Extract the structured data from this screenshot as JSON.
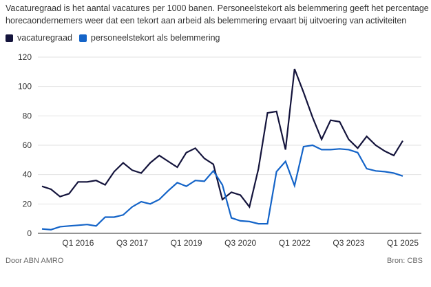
{
  "subtitle": "Vacaturegraad is het aantal vacatures per 1000 banen. Personeelstekort als belemmering geeft het percentage horecaondernemers weer dat een tekort aan arbeid als belemmering ervaart bij uitvoering van activiteiten",
  "footer": {
    "left": "Door ABN AMRO",
    "right": "Bron: CBS"
  },
  "chart_data": {
    "type": "line",
    "title": "",
    "xlabel": "",
    "ylabel": "",
    "ylim": [
      0,
      120
    ],
    "yticks": [
      0,
      20,
      40,
      60,
      80,
      100,
      120
    ],
    "x_start": "Q1 2015",
    "x_end": "Q1 2025",
    "xtick_labels": [
      {
        "label": "Q1 2016",
        "index": 4
      },
      {
        "label": "Q3 2017",
        "index": 10
      },
      {
        "label": "Q1 2019",
        "index": 16
      },
      {
        "label": "Q3 2020",
        "index": 22
      },
      {
        "label": "Q1 2022",
        "index": 28
      },
      {
        "label": "Q3 2023",
        "index": 34
      },
      {
        "label": "Q1 2025",
        "index": 40
      }
    ],
    "grid": true,
    "legend_position": "top-left",
    "series": [
      {
        "name": "vacaturegraad",
        "color": "#14143c",
        "values": [
          32,
          30,
          25,
          27,
          35,
          35,
          36,
          33,
          42,
          48,
          43,
          41,
          48,
          53,
          49,
          45,
          55,
          58,
          51,
          47,
          23,
          28,
          26,
          18,
          44,
          82,
          83,
          57,
          112,
          96,
          79,
          64,
          77,
          76,
          64,
          58,
          66,
          60,
          56,
          53,
          63
        ]
      },
      {
        "name": "personeelstekort als belemmering",
        "color": "#1464c8",
        "values": [
          3,
          2.5,
          4.5,
          5,
          5.5,
          6,
          5,
          11,
          11,
          12.5,
          18,
          21.5,
          20,
          23,
          29,
          34.5,
          32,
          36,
          35.5,
          42.5,
          33,
          10.5,
          8.5,
          8,
          6.5,
          6.5,
          42,
          49,
          32.5,
          59,
          60,
          57,
          57,
          57.5,
          57,
          55,
          44,
          42.5,
          42,
          41,
          39
        ]
      }
    ]
  }
}
